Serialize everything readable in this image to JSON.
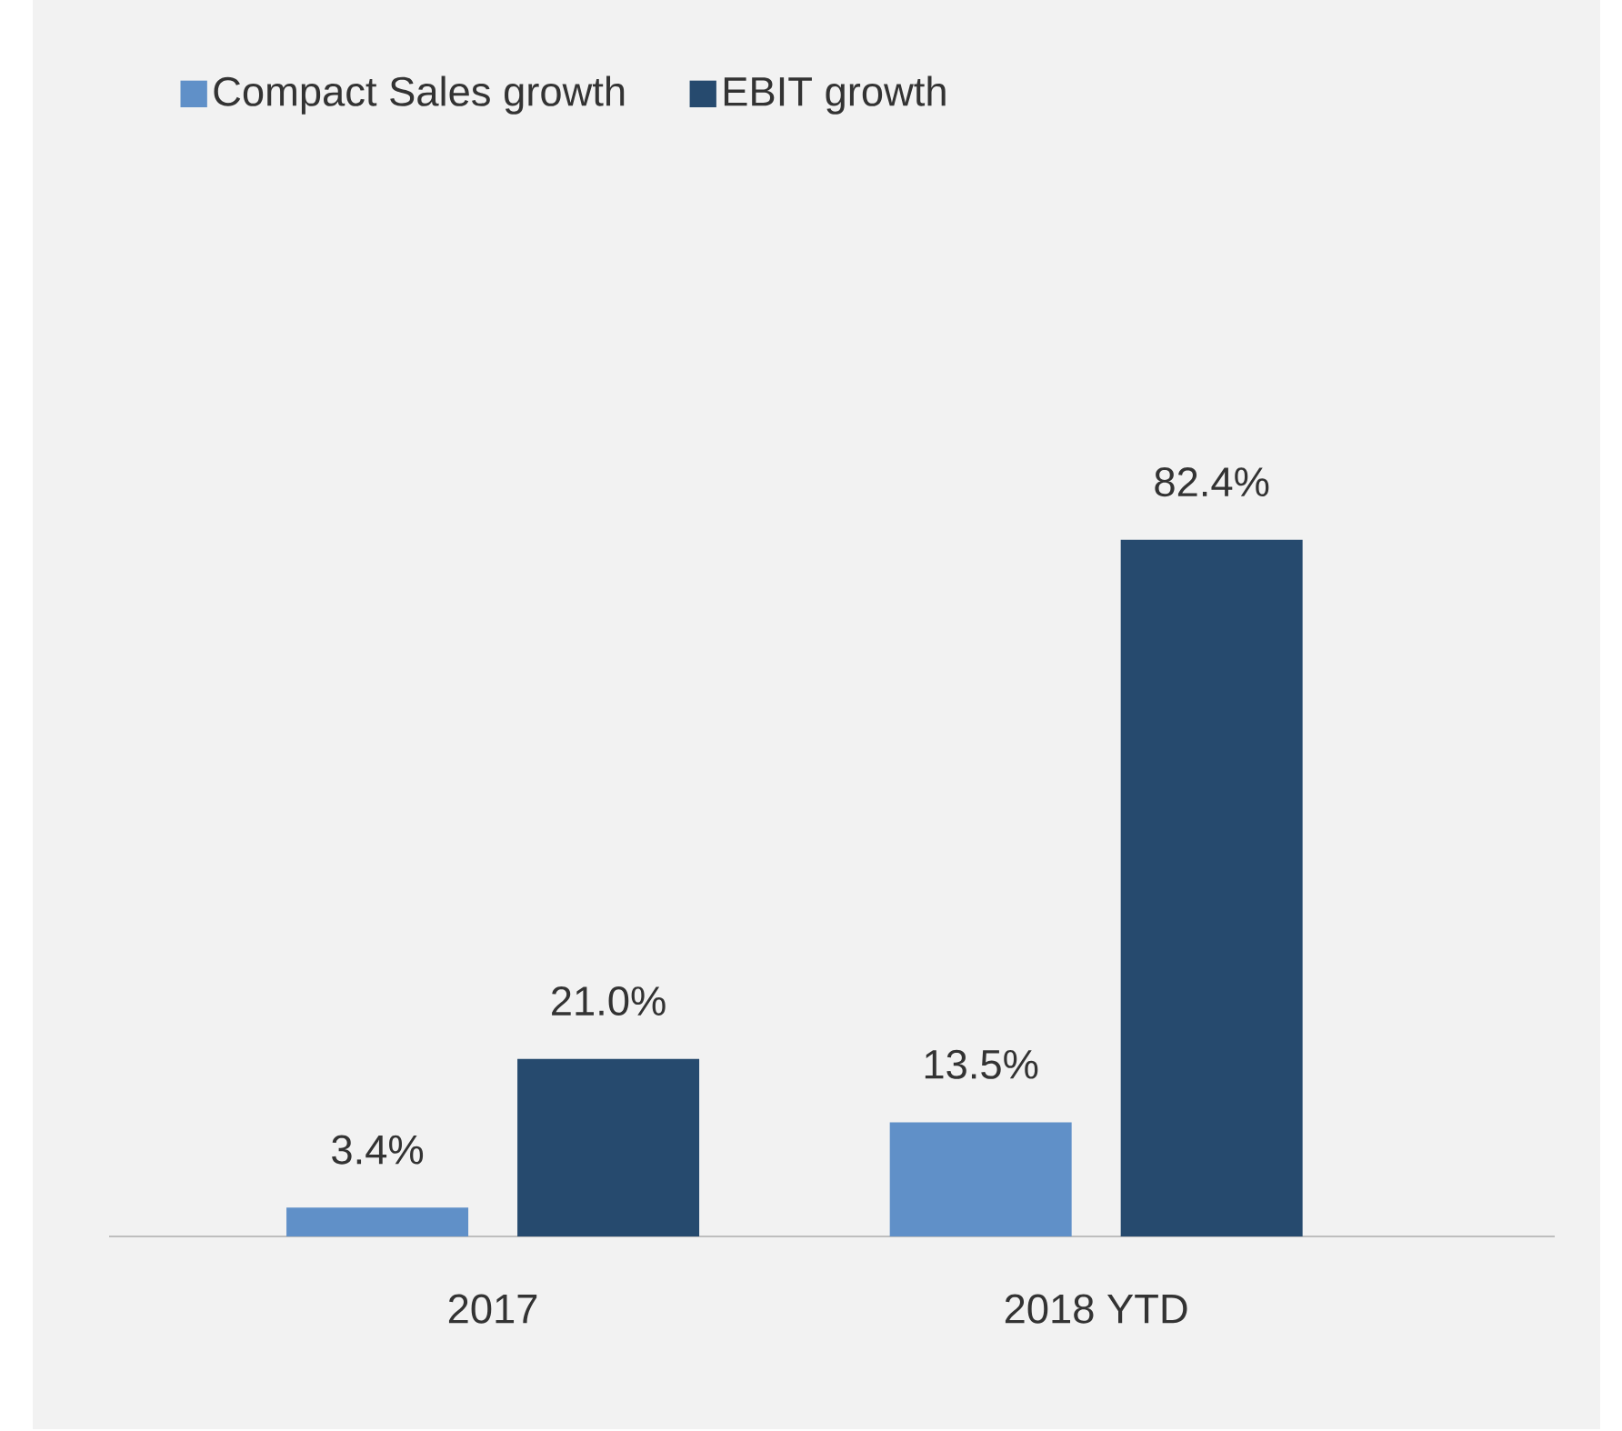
{
  "chart_data": {
    "type": "bar",
    "categories": [
      "2017",
      "2018 YTD"
    ],
    "legend": "top left",
    "series": [
      {
        "name": "Compact Sales growth",
        "color": "#6090c8",
        "values": [
          3.4,
          13.5
        ],
        "value_labels": [
          "3.4%",
          "13.5%"
        ]
      },
      {
        "name": "EBIT growth",
        "color": "#264a6e",
        "values": [
          21.0,
          82.4
        ],
        "value_labels": [
          "21.0%",
          "82.4%"
        ]
      }
    ]
  }
}
